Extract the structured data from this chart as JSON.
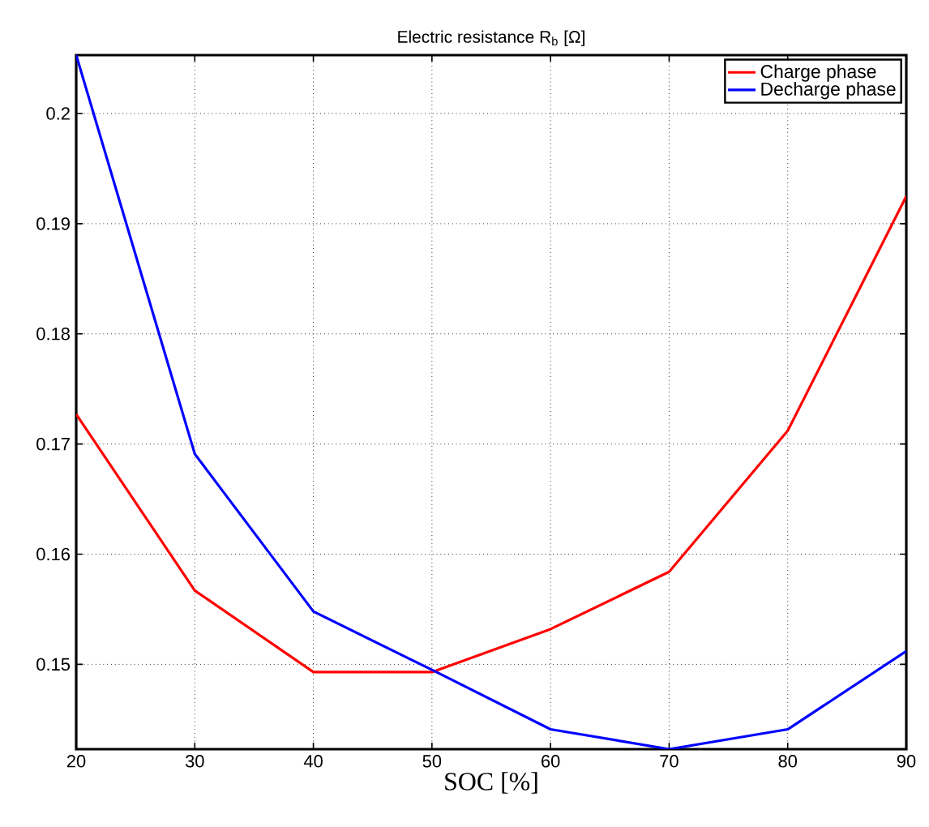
{
  "chart_data": {
    "type": "line",
    "title": "Electric resistance R$_{b}$ [Ω]",
    "xlabel": "SOC [%]",
    "x": [
      20,
      30,
      40,
      50,
      60,
      70,
      80,
      90
    ],
    "series": [
      {
        "name": "Charge phase",
        "color": "#ff0000",
        "values": [
          0.1727,
          0.1567,
          0.1493,
          0.1493,
          0.1532,
          0.1584,
          0.1712,
          0.1925
        ]
      },
      {
        "name": "Decharge phase",
        "color": "#0000ff",
        "values": [
          0.2053,
          0.1691,
          0.1548,
          0.1495,
          0.1441,
          0.1423,
          0.1441,
          0.1512
        ]
      }
    ],
    "xlim": [
      20,
      90
    ],
    "ylim": [
      0.1423,
      0.2053
    ],
    "xticks": [
      20,
      30,
      40,
      50,
      60,
      70,
      80,
      90
    ],
    "yticks": [
      0.15,
      0.16,
      0.17,
      0.18,
      0.19,
      0.2
    ],
    "grid": true,
    "legend": "top right",
    "line_style": "solid",
    "marker": "none"
  }
}
